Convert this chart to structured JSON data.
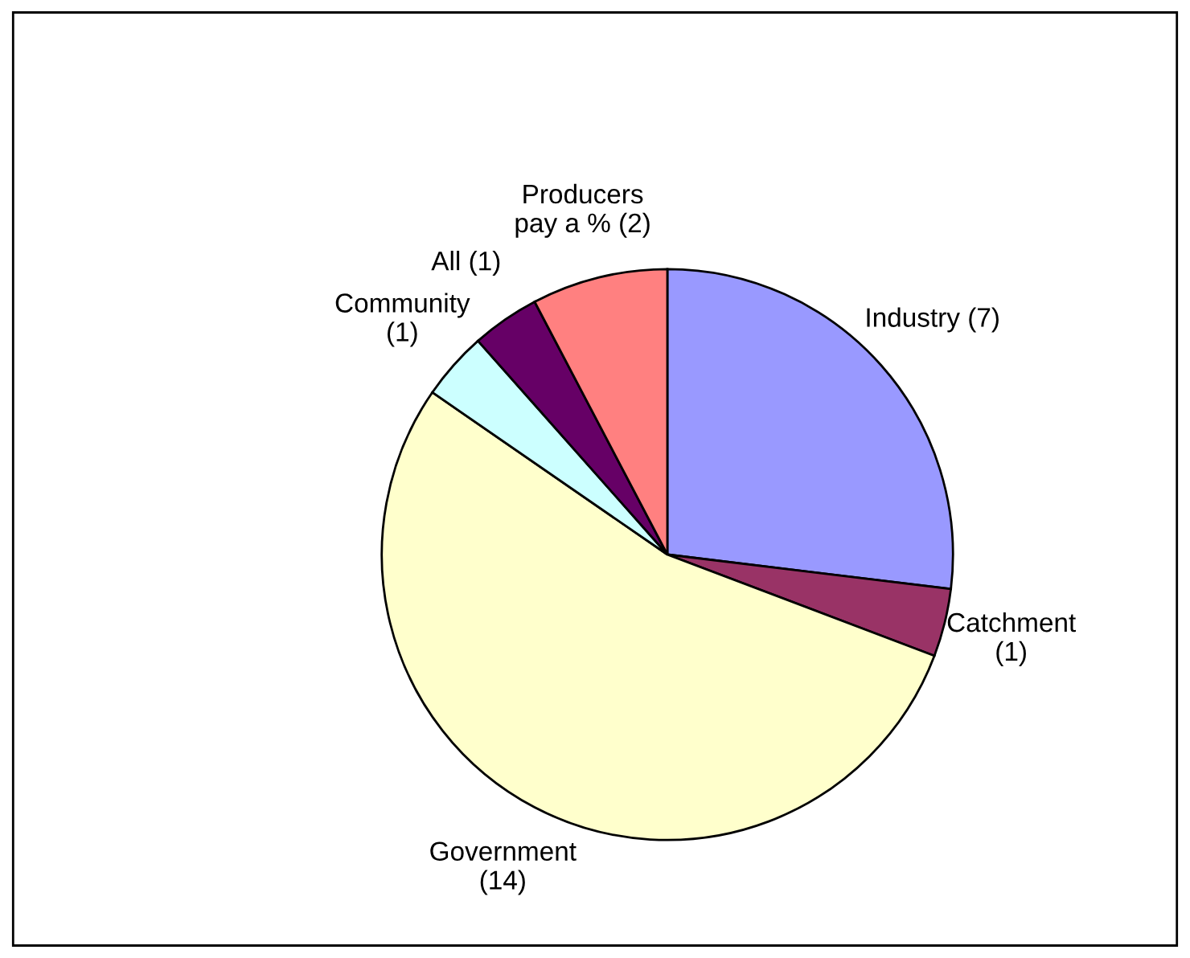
{
  "chart_data": {
    "type": "pie",
    "categories": [
      "Industry (7)",
      "Catchment\n(1)",
      "Government\n(14)",
      "Community\n(1)",
      "All (1)",
      "Producers\npay a % (2)"
    ],
    "values": [
      7,
      1,
      14,
      1,
      1,
      2
    ],
    "colors": [
      "#9999ff",
      "#993366",
      "#ffffcc",
      "#ccffff",
      "#660066",
      "#ff8080"
    ],
    "legend": false
  }
}
